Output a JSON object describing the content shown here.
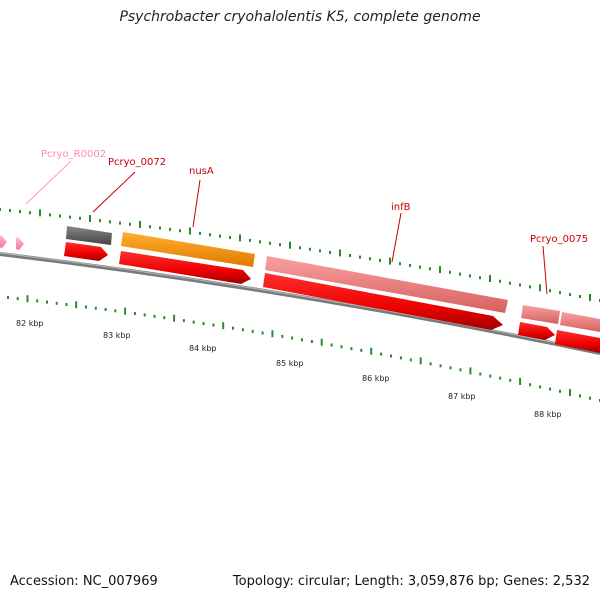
{
  "title": "Psychrobacter cryohalolentis K5, complete genome",
  "footer": {
    "accession": "Accession: NC_007969",
    "stats": "Topology: circular; Length: 3,059,876 bp; Genes: 2,532"
  },
  "colors": {
    "backbone": "#7a7a7a",
    "cds": "#ff0000",
    "cds_dark": "#b00000",
    "rna": "#ff99cc",
    "pseudo": "#666666",
    "highlight": "#ff9900",
    "salmon": "#f08080",
    "tick": "#2a8a2a",
    "label": "#cc0000",
    "label_pink": "#ff88bb"
  },
  "gene_labels": [
    {
      "text": "Pcryo_R0002"
    },
    {
      "text": "Pcryo_0072"
    },
    {
      "text": "nusA"
    },
    {
      "text": "infB"
    },
    {
      "text": "Pcryo_0075"
    }
  ],
  "kbp_labels": [
    "82 kbp",
    "83 kbp",
    "84 kbp",
    "85 kbp",
    "86 kbp",
    "87 kbp",
    "88 kbp"
  ]
}
